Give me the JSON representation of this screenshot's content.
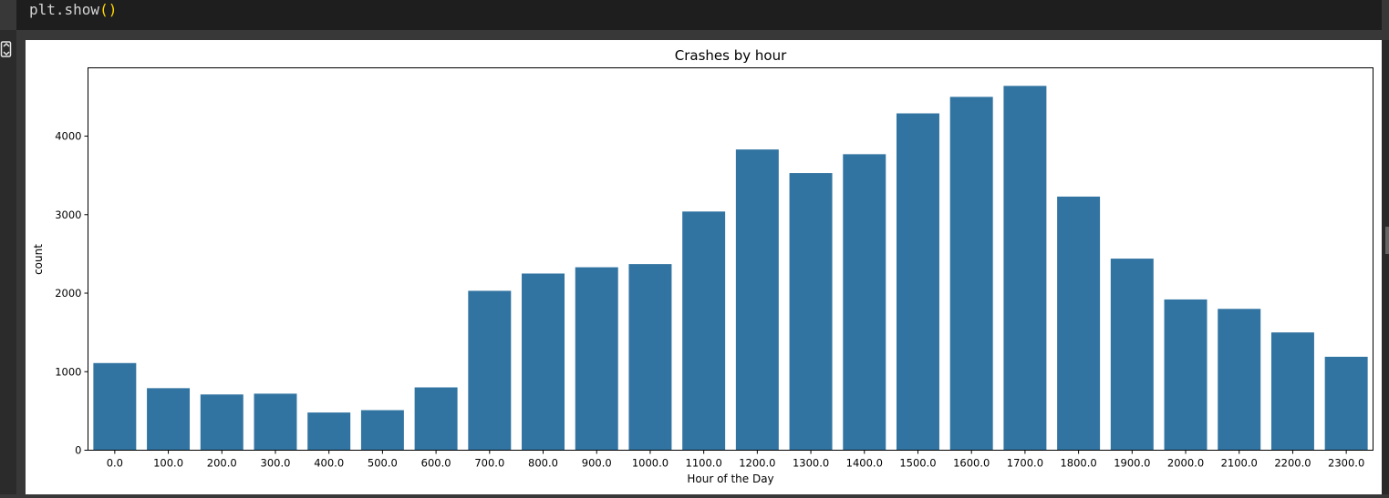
{
  "code": {
    "fn": "plt.show",
    "parens": "()"
  },
  "chart_data": {
    "type": "bar",
    "title": "Crashes by hour",
    "xlabel": "Hour of the Day",
    "ylabel": "count",
    "categories": [
      "0.0",
      "100.0",
      "200.0",
      "300.0",
      "400.0",
      "500.0",
      "600.0",
      "700.0",
      "800.0",
      "900.0",
      "1000.0",
      "1100.0",
      "1200.0",
      "1300.0",
      "1400.0",
      "1500.0",
      "1600.0",
      "1700.0",
      "1800.0",
      "1900.0",
      "2000.0",
      "2100.0",
      "2200.0",
      "2300.0"
    ],
    "values": [
      1110,
      790,
      710,
      720,
      480,
      510,
      800,
      2030,
      2250,
      2330,
      2370,
      3040,
      3830,
      3530,
      3770,
      4290,
      4500,
      4640,
      3230,
      2440,
      1920,
      1800,
      1500,
      1190
    ],
    "ylim": [
      0,
      4870
    ],
    "yticks": [
      0,
      1000,
      2000,
      3000,
      4000
    ],
    "bar_color": "#3274a1",
    "grid": false
  }
}
